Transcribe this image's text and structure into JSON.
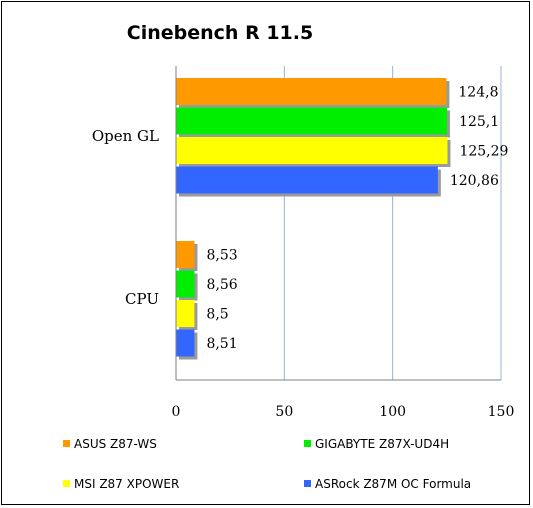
{
  "chart_data": {
    "type": "bar",
    "orientation": "horizontal",
    "title": "Cinebench R 11.5",
    "categories": [
      "Open GL",
      "CPU"
    ],
    "series": [
      {
        "name": "ASUS Z87-WS",
        "color": "#ff9900",
        "values": [
          124.8,
          8.53
        ],
        "labels": [
          "124,8",
          "8,53"
        ]
      },
      {
        "name": "GIGABYTE Z87X-UD4H",
        "color": "#00ee00",
        "values": [
          125.1,
          8.56
        ],
        "labels": [
          "125,1",
          "8,56"
        ]
      },
      {
        "name": "MSI Z87 XPOWER",
        "color": "#ffff00",
        "values": [
          125.29,
          8.5
        ],
        "labels": [
          "125,29",
          "8,5"
        ]
      },
      {
        "name": "ASRock Z87M OC Formula",
        "color": "#3366ff",
        "values": [
          120.86,
          8.51
        ],
        "labels": [
          "120,86",
          "8,51"
        ]
      }
    ],
    "xlim": [
      0,
      150
    ],
    "xticks": [
      "0",
      "50",
      "100",
      "150"
    ],
    "grid": true,
    "grid_color": "#98b4d4",
    "legend_position": "bottom"
  }
}
